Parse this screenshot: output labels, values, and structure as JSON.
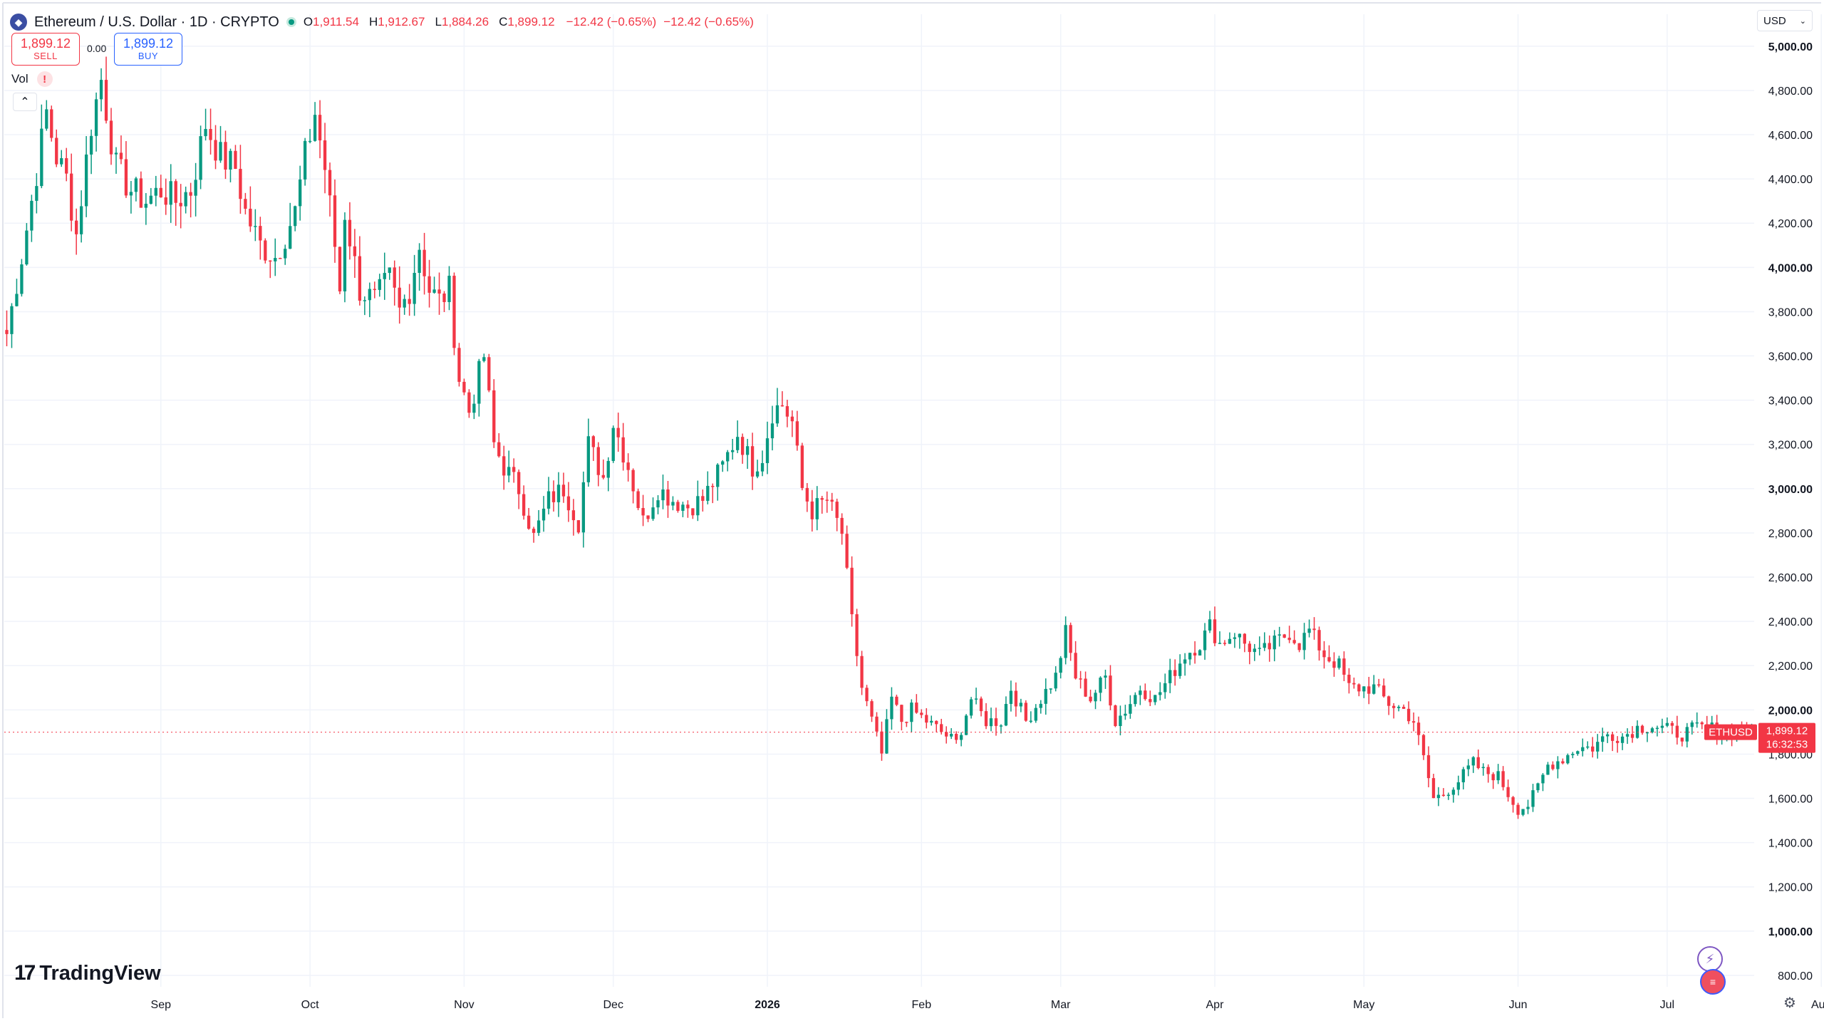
{
  "header": {
    "symbol_icon": "ethereum-icon",
    "title": "Ethereum / U.S. Dollar · 1D · CRYPTO",
    "ohlc": [
      {
        "key": "O",
        "value": "1,911.54"
      },
      {
        "key": "H",
        "value": "1,912.67"
      },
      {
        "key": "L",
        "value": "1,884.26"
      },
      {
        "key": "C",
        "value": "1,899.12"
      }
    ],
    "change": "−12.42 (−0.65%)",
    "change_repeat": "−12.42 (−0.65%)"
  },
  "trade": {
    "sell_price": "1,899.12",
    "sell_label": "SELL",
    "buy_price": "1,899.12",
    "buy_label": "BUY",
    "spread": "0.00"
  },
  "volume": {
    "label": "Vol",
    "warning_icon": "!"
  },
  "currency": {
    "label": "USD"
  },
  "brand": {
    "name": "TradingView",
    "mark": "17"
  },
  "colors": {
    "up": "#089981",
    "down": "#f23645",
    "grid": "#f0f3fa",
    "axis_text": "#131722",
    "price_tag": "#f23645"
  },
  "price_tag": {
    "symbol": "ETHUSD",
    "price": "1,899.12",
    "countdown": "16:32:53"
  },
  "chart_data": {
    "type": "candlestick",
    "title": "Ethereum / U.S. Dollar · 1D · CRYPTO",
    "ylim": [
      700,
      5080
    ],
    "y_ticks": [
      {
        "value": 5000,
        "label": "5,000.00",
        "bold": true
      },
      {
        "value": 4800,
        "label": "4,800.00"
      },
      {
        "value": 4600,
        "label": "4,600.00"
      },
      {
        "value": 4400,
        "label": "4,400.00"
      },
      {
        "value": 4200,
        "label": "4,200.00"
      },
      {
        "value": 4000,
        "label": "4,000.00",
        "bold": true
      },
      {
        "value": 3800,
        "label": "3,800.00"
      },
      {
        "value": 3600,
        "label": "3,600.00"
      },
      {
        "value": 3400,
        "label": "3,400.00"
      },
      {
        "value": 3200,
        "label": "3,200.00"
      },
      {
        "value": 3000,
        "label": "3,000.00",
        "bold": true
      },
      {
        "value": 2800,
        "label": "2,800.00"
      },
      {
        "value": 2600,
        "label": "2,600.00"
      },
      {
        "value": 2400,
        "label": "2,400.00"
      },
      {
        "value": 2200,
        "label": "2,200.00"
      },
      {
        "value": 2000,
        "label": "2,000.00",
        "bold": true
      },
      {
        "value": 1800,
        "label": "1,800.00"
      },
      {
        "value": 1600,
        "label": "1,600.00"
      },
      {
        "value": 1400,
        "label": "1,400.00"
      },
      {
        "value": 1200,
        "label": "1,200.00"
      },
      {
        "value": 1000,
        "label": "1,000.00",
        "bold": true
      },
      {
        "value": 800,
        "label": "800.00"
      }
    ],
    "x_ticks": [
      {
        "label": "Sep",
        "index": 31
      },
      {
        "label": "Oct",
        "index": 61
      },
      {
        "label": "Nov",
        "index": 92
      },
      {
        "label": "Dec",
        "index": 122
      },
      {
        "label": "2026",
        "index": 153,
        "bold": true
      },
      {
        "label": "Feb",
        "index": 184
      },
      {
        "label": "Mar",
        "index": 212
      },
      {
        "label": "Apr",
        "index": 243
      },
      {
        "label": "May",
        "index": 273
      },
      {
        "label": "Jun",
        "index": 304
      },
      {
        "label": "Jul",
        "index": 334
      },
      {
        "label": "Aug",
        "index": 365
      }
    ],
    "anchors": [
      [
        0,
        3700
      ],
      [
        3,
        4050
      ],
      [
        5,
        4300
      ],
      [
        8,
        4700
      ],
      [
        10,
        4500
      ],
      [
        12,
        4400
      ],
      [
        14,
        4150
      ],
      [
        17,
        4650
      ],
      [
        19,
        4850
      ],
      [
        22,
        4450
      ],
      [
        25,
        4350
      ],
      [
        28,
        4300
      ],
      [
        31,
        4350
      ],
      [
        34,
        4300
      ],
      [
        37,
        4350
      ],
      [
        40,
        4650
      ],
      [
        43,
        4500
      ],
      [
        46,
        4450
      ],
      [
        48,
        4250
      ],
      [
        51,
        4100
      ],
      [
        54,
        4050
      ],
      [
        56,
        4150
      ],
      [
        58,
        4250
      ],
      [
        60,
        4500
      ],
      [
        62,
        4700
      ],
      [
        64,
        4450
      ],
      [
        66,
        4100
      ],
      [
        67,
        3900
      ],
      [
        68,
        4250
      ],
      [
        71,
        3900
      ],
      [
        74,
        3850
      ],
      [
        77,
        3950
      ],
      [
        79,
        3800
      ],
      [
        81,
        3900
      ],
      [
        83,
        4100
      ],
      [
        85,
        3900
      ],
      [
        87,
        3850
      ],
      [
        89,
        3900
      ],
      [
        91,
        3500
      ],
      [
        93,
        3350
      ],
      [
        96,
        3600
      ],
      [
        98,
        3200
      ],
      [
        100,
        3100
      ],
      [
        103,
        3000
      ],
      [
        106,
        2780
      ],
      [
        109,
        2950
      ],
      [
        112,
        3000
      ],
      [
        115,
        2850
      ],
      [
        117,
        3200
      ],
      [
        120,
        3050
      ],
      [
        122,
        3300
      ],
      [
        125,
        3100
      ],
      [
        128,
        2850
      ],
      [
        131,
        3000
      ],
      [
        134,
        2950
      ],
      [
        137,
        2920
      ],
      [
        140,
        2950
      ],
      [
        144,
        3100
      ],
      [
        147,
        3250
      ],
      [
        150,
        3100
      ],
      [
        152,
        3150
      ],
      [
        154,
        3350
      ],
      [
        156,
        3380
      ],
      [
        158,
        3300
      ],
      [
        160,
        3000
      ],
      [
        162,
        2900
      ],
      [
        165,
        2950
      ],
      [
        168,
        2800
      ],
      [
        170,
        2400
      ],
      [
        172,
        2100
      ],
      [
        174,
        1950
      ],
      [
        176,
        1800
      ],
      [
        178,
        2050
      ],
      [
        180,
        1950
      ],
      [
        182,
        2000
      ],
      [
        185,
        1950
      ],
      [
        188,
        1900
      ],
      [
        191,
        1850
      ],
      [
        194,
        2050
      ],
      [
        197,
        1950
      ],
      [
        200,
        1950
      ],
      [
        202,
        2100
      ],
      [
        205,
        1950
      ],
      [
        208,
        2050
      ],
      [
        211,
        2150
      ],
      [
        213,
        2350
      ],
      [
        215,
        2150
      ],
      [
        218,
        2050
      ],
      [
        221,
        2150
      ],
      [
        223,
        1950
      ],
      [
        225,
        2000
      ],
      [
        228,
        2100
      ],
      [
        231,
        2050
      ],
      [
        234,
        2150
      ],
      [
        237,
        2250
      ],
      [
        240,
        2300
      ],
      [
        242,
        2380
      ],
      [
        244,
        2300
      ],
      [
        247,
        2350
      ],
      [
        249,
        2300
      ],
      [
        252,
        2250
      ],
      [
        255,
        2300
      ],
      [
        258,
        2350
      ],
      [
        260,
        2300
      ],
      [
        262,
        2360
      ],
      [
        265,
        2250
      ],
      [
        268,
        2200
      ],
      [
        270,
        2100
      ],
      [
        272,
        2100
      ],
      [
        275,
        2100
      ],
      [
        278,
        2030
      ],
      [
        281,
        2000
      ],
      [
        283,
        1950
      ],
      [
        285,
        1780
      ],
      [
        287,
        1600
      ],
      [
        289,
        1620
      ],
      [
        292,
        1680
      ],
      [
        295,
        1760
      ],
      [
        297,
        1720
      ],
      [
        300,
        1700
      ],
      [
        302,
        1620
      ],
      [
        304,
        1550
      ],
      [
        306,
        1570
      ],
      [
        308,
        1650
      ],
      [
        310,
        1750
      ],
      [
        313,
        1780
      ],
      [
        316,
        1830
      ],
      [
        319,
        1830
      ],
      [
        322,
        1890
      ],
      [
        325,
        1880
      ],
      [
        328,
        1920
      ],
      [
        331,
        1930
      ],
      [
        334,
        1910
      ],
      [
        337,
        1890
      ],
      [
        340,
        1920
      ],
      [
        343,
        1915
      ],
      [
        346,
        1905
      ],
      [
        349,
        1910
      ],
      [
        351,
        1899.12
      ]
    ],
    "last_close": 1899.12
  }
}
